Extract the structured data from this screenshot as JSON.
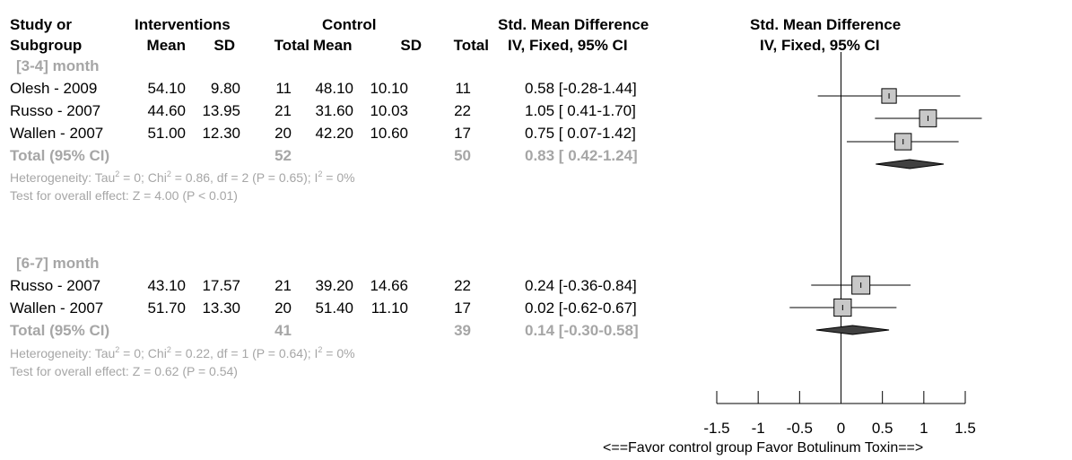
{
  "headers": {
    "study_line1": "Study or",
    "study_line2": "Subgroup",
    "interventions": "Interventions",
    "control": "Control",
    "smd_line1": "Std. Mean Difference",
    "smd_line2": "IV, Fixed, 95% CI",
    "mean": "Mean",
    "sd": "SD",
    "total": "Total",
    "plot_line1": "Std. Mean Difference",
    "plot_line2": "IV, Fixed, 95% CI"
  },
  "groups": [
    {
      "label": "[3-4] month",
      "studies": [
        {
          "name": "Olesh - 2009",
          "i_mean": "54.10",
          "i_sd": "9.80",
          "i_total": "11",
          "c_mean": "48.10",
          "c_sd": "10.10",
          "c_total": "11",
          "ci_text": "0.58 [-0.28-1.44]"
        },
        {
          "name": "Russo - 2007",
          "i_mean": "44.60",
          "i_sd": "13.95",
          "i_total": "21",
          "c_mean": "31.60",
          "c_sd": "10.03",
          "c_total": "22",
          "ci_text": "1.05 [ 0.41-1.70]"
        },
        {
          "name": "Wallen - 2007",
          "i_mean": "51.00",
          "i_sd": "12.30",
          "i_total": "20",
          "c_mean": "42.20",
          "c_sd": "10.60",
          "c_total": "17",
          "ci_text": "0.75 [ 0.07-1.42]"
        }
      ],
      "total": {
        "label": "Total (95% CI)",
        "i_total": "52",
        "c_total": "50",
        "ci_text": "0.83 [ 0.42-1.24]"
      },
      "heterogeneity": {
        "a": "Heterogeneity: Tau",
        "b": " = 0; Chi",
        "c": " = 0.86, df = 2 (P = 0.65); I",
        "d": " = 0%",
        "sup": "2"
      },
      "overall": "Test for overall effect: Z = 4.00 (P < 0.01)"
    },
    {
      "label": "[6-7] month",
      "studies": [
        {
          "name": "Russo - 2007",
          "i_mean": "43.10",
          "i_sd": "17.57",
          "i_total": "21",
          "c_mean": "39.20",
          "c_sd": "14.66",
          "c_total": "22",
          "ci_text": "0.24 [-0.36-0.84]"
        },
        {
          "name": "Wallen - 2007",
          "i_mean": "51.70",
          "i_sd": "13.30",
          "i_total": "20",
          "c_mean": "51.40",
          "c_sd": "11.10",
          "c_total": "17",
          "ci_text": "0.02 [-0.62-0.67]"
        }
      ],
      "total": {
        "label": "Total (95% CI)",
        "i_total": "41",
        "c_total": "39",
        "ci_text": "0.14 [-0.30-0.58]"
      },
      "heterogeneity": {
        "a": "Heterogeneity: Tau",
        "b": " = 0; Chi",
        "c": " = 0.22, df = 1 (P = 0.64); I",
        "d": " = 0%",
        "sup": "2"
      },
      "overall": "Test for overall effect: Z = 0.62 (P = 0.54)"
    }
  ],
  "axis_note": "<==Favor control group    Favor Botulinum Toxin==>",
  "colors": {
    "grey_text": "#a6a6a6",
    "box_fill": "#c8c8c8",
    "diamond_fill": "#404040"
  },
  "chart_data": {
    "type": "forest",
    "xlim": [
      -1.5,
      1.5
    ],
    "ticks": [
      -1.5,
      -1,
      -0.5,
      0,
      0.5,
      1,
      1.5
    ],
    "tick_labels": [
      "-1.5",
      "-1",
      "-0.5",
      "0",
      "0.5",
      "1",
      "1.5"
    ],
    "studies": [
      {
        "group": "[3-4] month",
        "name": "Olesh - 2009",
        "est": 0.58,
        "lo": -0.28,
        "hi": 1.44,
        "weight": 21
      },
      {
        "group": "[3-4] month",
        "name": "Russo - 2007",
        "est": 1.05,
        "lo": 0.41,
        "hi": 1.7,
        "weight": 42
      },
      {
        "group": "[3-4] month",
        "name": "Wallen - 2007",
        "est": 0.75,
        "lo": 0.07,
        "hi": 1.42,
        "weight": 37
      },
      {
        "group": "[6-7] month",
        "name": "Russo - 2007",
        "est": 0.24,
        "lo": -0.36,
        "hi": 0.84,
        "weight": 54
      },
      {
        "group": "[6-7] month",
        "name": "Wallen - 2007",
        "est": 0.02,
        "lo": -0.62,
        "hi": 0.67,
        "weight": 46
      }
    ],
    "pooled": [
      {
        "group": "[3-4] month",
        "est": 0.83,
        "lo": 0.42,
        "hi": 1.24
      },
      {
        "group": "[6-7] month",
        "est": 0.14,
        "lo": -0.3,
        "hi": 0.58
      }
    ]
  }
}
